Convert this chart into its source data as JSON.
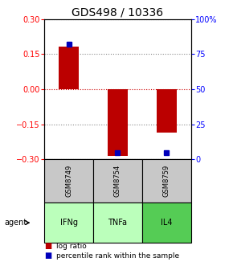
{
  "title": "GDS498 / 10336",
  "samples": [
    "GSM8749",
    "GSM8754",
    "GSM8759"
  ],
  "agents": [
    "IFNg",
    "TNFa",
    "IL4"
  ],
  "log_ratios": [
    0.18,
    -0.285,
    -0.185
  ],
  "percentile_ranks": [
    82,
    5,
    5
  ],
  "ylim_left": [
    -0.3,
    0.3
  ],
  "ylim_right": [
    0,
    100
  ],
  "left_yticks": [
    -0.3,
    -0.15,
    0,
    0.15,
    0.3
  ],
  "right_yticks": [
    0,
    25,
    50,
    75,
    100
  ],
  "bar_color": "#bb0000",
  "percentile_color": "#0000bb",
  "sample_bg": "#c8c8c8",
  "agent_bg_colors": [
    "#bbffbb",
    "#bbffbb",
    "#55cc55"
  ],
  "grid_color": "#888888",
  "zero_line_color": "#cc0000",
  "title_fontsize": 10,
  "tick_fontsize": 7,
  "bar_width": 0.4,
  "percentile_marker_size": 5
}
